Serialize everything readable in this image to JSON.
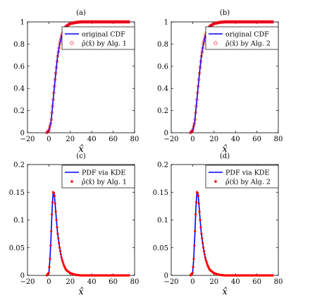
{
  "chart_data": [
    {
      "panel": "(a)",
      "type": "line",
      "xlabel": "x̂",
      "xlim": [
        -20,
        80
      ],
      "ylim": [
        0,
        1
      ],
      "xticks": [
        "−20",
        "0",
        "20",
        "40",
        "60",
        "80"
      ],
      "yticks": [
        "0",
        "0.2",
        "0.4",
        "0.6",
        "0.8",
        "1"
      ],
      "legend_position": "upper-right",
      "grid": false,
      "series": [
        {
          "name": "original CDF",
          "style": "line",
          "color": "#0000ff",
          "x": [
            -2,
            0,
            2,
            4,
            6,
            8,
            10,
            12,
            14,
            16,
            20,
            25,
            30,
            40,
            50,
            60,
            75
          ],
          "y": [
            0,
            0.02,
            0.1,
            0.3,
            0.5,
            0.68,
            0.8,
            0.88,
            0.93,
            0.96,
            0.985,
            0.995,
            1,
            1,
            1,
            1,
            1
          ]
        },
        {
          "name": "ρ̂(x̂) by Alg. 1",
          "style": "open-circle",
          "color": "#ff0000",
          "x": [
            -2,
            0,
            2,
            4,
            6,
            8,
            10,
            12,
            14,
            16,
            20,
            25,
            30,
            40,
            50,
            60,
            75
          ],
          "y": [
            0,
            0.02,
            0.1,
            0.3,
            0.5,
            0.68,
            0.8,
            0.88,
            0.93,
            0.96,
            0.985,
            0.995,
            1,
            1,
            1,
            1,
            1
          ]
        }
      ]
    },
    {
      "panel": "(b)",
      "type": "line",
      "xlabel": "x̂",
      "xlim": [
        -20,
        80
      ],
      "ylim": [
        0,
        1
      ],
      "xticks": [
        "−20",
        "0",
        "20",
        "40",
        "60",
        "80"
      ],
      "yticks": [
        "0",
        "0.2",
        "0.4",
        "0.6",
        "0.8",
        "1"
      ],
      "legend_position": "upper-right",
      "grid": false,
      "series": [
        {
          "name": "original CDF",
          "style": "line",
          "color": "#0000ff",
          "x": [
            -2,
            0,
            2,
            4,
            6,
            8,
            10,
            12,
            14,
            16,
            20,
            25,
            30,
            40,
            50,
            60,
            75
          ],
          "y": [
            0,
            0.02,
            0.1,
            0.3,
            0.5,
            0.68,
            0.8,
            0.88,
            0.93,
            0.96,
            0.985,
            0.995,
            1,
            1,
            1,
            1,
            1
          ]
        },
        {
          "name": "ρ̂(x̂) by Alg. 2",
          "style": "open-circle",
          "color": "#ff0000",
          "x": [
            -2,
            0,
            2,
            4,
            6,
            8,
            10,
            12,
            14,
            16,
            20,
            25,
            30,
            40,
            50,
            60,
            75
          ],
          "y": [
            0,
            0.02,
            0.1,
            0.3,
            0.5,
            0.68,
            0.8,
            0.88,
            0.93,
            0.96,
            0.985,
            0.995,
            1,
            1,
            1,
            1,
            1
          ]
        }
      ]
    },
    {
      "panel": "(c)",
      "type": "line",
      "xlabel": "x̂",
      "xlim": [
        -20,
        80
      ],
      "ylim": [
        0,
        0.2
      ],
      "xticks": [
        "−20",
        "0",
        "20",
        "40",
        "60",
        "80"
      ],
      "yticks": [
        "0",
        "0.05",
        "0.1",
        "0.15",
        "0.2"
      ],
      "legend_position": "upper-right",
      "grid": false,
      "series": [
        {
          "name": "PDF via KDE",
          "style": "line",
          "color": "#0000ff",
          "x": [
            -2,
            0,
            1,
            2,
            3,
            4,
            5,
            6,
            7,
            8,
            10,
            12,
            14,
            16,
            20,
            25,
            30,
            40,
            50,
            60,
            75
          ],
          "y": [
            0,
            0.005,
            0.03,
            0.07,
            0.12,
            0.15,
            0.148,
            0.125,
            0.1,
            0.078,
            0.05,
            0.03,
            0.018,
            0.01,
            0.004,
            0.001,
            0,
            0,
            0,
            0,
            0
          ]
        },
        {
          "name": "ρ̂(x̂) by Alg. 1",
          "style": "filled-dot",
          "color": "#ff0000",
          "x": [
            -2,
            0,
            1,
            2,
            3,
            4,
            5,
            6,
            7,
            8,
            10,
            12,
            14,
            16,
            20,
            25,
            30,
            40,
            50,
            60,
            75
          ],
          "y": [
            0,
            0.005,
            0.03,
            0.07,
            0.12,
            0.15,
            0.148,
            0.125,
            0.1,
            0.078,
            0.05,
            0.03,
            0.018,
            0.01,
            0.004,
            0.001,
            0,
            0,
            0,
            0,
            0
          ]
        }
      ]
    },
    {
      "panel": "(d)",
      "type": "line",
      "xlabel": "x̂",
      "xlim": [
        -20,
        80
      ],
      "ylim": [
        0,
        0.2
      ],
      "xticks": [
        "−20",
        "0",
        "20",
        "40",
        "60",
        "80"
      ],
      "yticks": [
        "0",
        "0.05",
        "0.1",
        "0.15",
        "0.2"
      ],
      "legend_position": "upper-right",
      "grid": false,
      "series": [
        {
          "name": "PDF via KDE",
          "style": "line",
          "color": "#0000ff",
          "x": [
            -2,
            0,
            1,
            2,
            3,
            4,
            5,
            6,
            7,
            8,
            10,
            12,
            14,
            16,
            20,
            25,
            30,
            40,
            50,
            60,
            75
          ],
          "y": [
            0,
            0.005,
            0.03,
            0.07,
            0.12,
            0.15,
            0.148,
            0.125,
            0.1,
            0.078,
            0.05,
            0.03,
            0.018,
            0.01,
            0.004,
            0.001,
            0,
            0,
            0,
            0,
            0
          ]
        },
        {
          "name": "ρ̂(x̂) by Alg. 2",
          "style": "filled-dot",
          "color": "#ff0000",
          "x": [
            -2,
            0,
            1,
            2,
            3,
            4,
            5,
            6,
            7,
            8,
            10,
            12,
            14,
            16,
            20,
            25,
            30,
            40,
            50,
            60,
            75
          ],
          "y": [
            0,
            0.005,
            0.03,
            0.07,
            0.12,
            0.15,
            0.148,
            0.125,
            0.1,
            0.078,
            0.05,
            0.03,
            0.018,
            0.01,
            0.004,
            0.001,
            0,
            0,
            0,
            0,
            0
          ]
        }
      ]
    }
  ]
}
